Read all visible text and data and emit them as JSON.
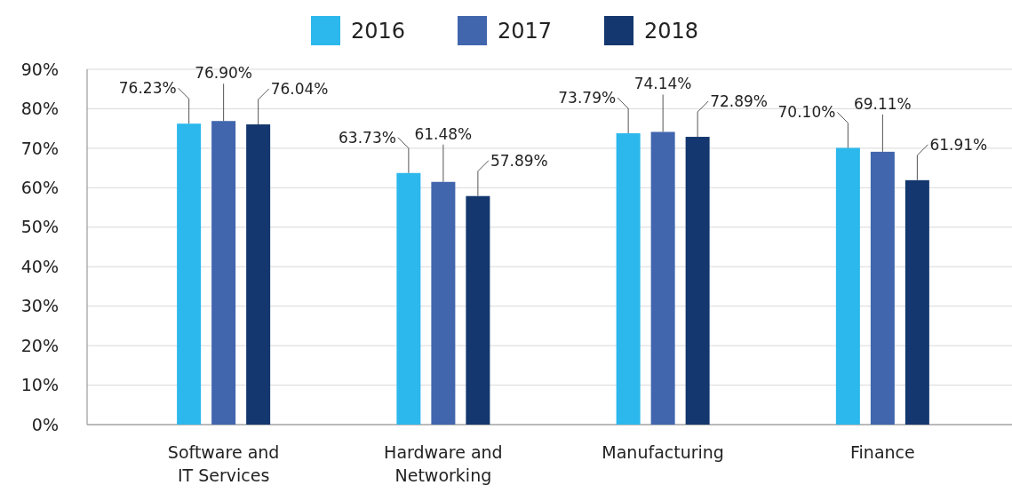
{
  "chart_data": {
    "type": "bar",
    "categories": [
      "Software and IT Services",
      "Hardware and Networking",
      "Manufacturing",
      "Finance"
    ],
    "series": [
      {
        "name": "2016",
        "color": "#2cb8ec",
        "values": [
          76.23,
          63.73,
          73.79,
          70.1
        ],
        "value_labels": [
          "76.23%",
          "63.73%",
          "73.79%",
          "70.10%"
        ]
      },
      {
        "name": "2017",
        "color": "#4166ad",
        "values": [
          76.9,
          61.48,
          74.14,
          69.11
        ],
        "value_labels": [
          "76.90%",
          "61.48%",
          "74.14%",
          "69.11%"
        ]
      },
      {
        "name": "2018",
        "color": "#13376e",
        "values": [
          76.04,
          57.89,
          72.89,
          61.91
        ],
        "value_labels": [
          "76.04%",
          "57.89%",
          "72.89%",
          "61.91%"
        ]
      }
    ],
    "ylim": [
      0,
      90
    ],
    "yticks": [
      {
        "value": 0,
        "label": "0%"
      },
      {
        "value": 10,
        "label": "10%"
      },
      {
        "value": 20,
        "label": "20%"
      },
      {
        "value": 30,
        "label": "30%"
      },
      {
        "value": 40,
        "label": "40%"
      },
      {
        "value": 50,
        "label": "50%"
      },
      {
        "value": 60,
        "label": "60%"
      },
      {
        "value": 70,
        "label": "70%"
      },
      {
        "value": 80,
        "label": "80%"
      },
      {
        "value": 90,
        "label": "90%"
      }
    ],
    "grid": "y",
    "legend": "top"
  }
}
